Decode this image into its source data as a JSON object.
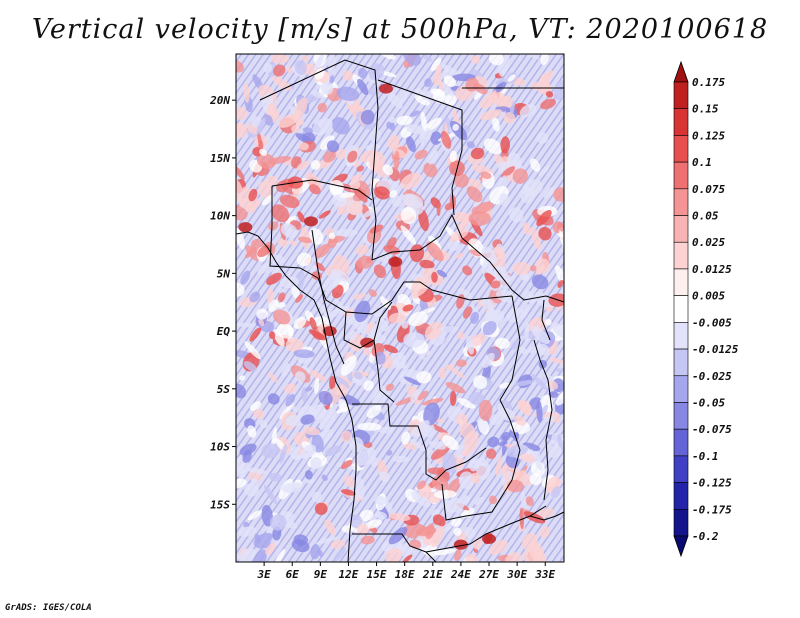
{
  "title": "Vertical velocity [m/s] at 500hPa, VT: 2020100618",
  "credit": "GrADS: IGES/COLA",
  "map": {
    "lat_range": [
      -20,
      24
    ],
    "lon_range": [
      0,
      35
    ],
    "lat_ticks": [
      {
        "value": 20,
        "label": "20N"
      },
      {
        "value": 15,
        "label": "15N"
      },
      {
        "value": 10,
        "label": "10N"
      },
      {
        "value": 5,
        "label": "5N"
      },
      {
        "value": 0,
        "label": "EQ"
      },
      {
        "value": -5,
        "label": "5S"
      },
      {
        "value": -10,
        "label": "10S"
      },
      {
        "value": -15,
        "label": "15S"
      }
    ],
    "lon_ticks": [
      {
        "value": 3,
        "label": "3E"
      },
      {
        "value": 6,
        "label": "6E"
      },
      {
        "value": 9,
        "label": "9E"
      },
      {
        "value": 12,
        "label": "12E"
      },
      {
        "value": 15,
        "label": "15E"
      },
      {
        "value": 18,
        "label": "18E"
      },
      {
        "value": 21,
        "label": "21E"
      },
      {
        "value": 24,
        "label": "24E"
      },
      {
        "value": 27,
        "label": "27E"
      },
      {
        "value": 30,
        "label": "30E"
      },
      {
        "value": 33,
        "label": "33E"
      }
    ]
  },
  "colorbar": {
    "labels": [
      "0.175",
      "0.15",
      "0.125",
      "0.1",
      "0.075",
      "0.05",
      "0.025",
      "0.0125",
      "0.005",
      "-0.005",
      "-0.0125",
      "-0.025",
      "-0.05",
      "-0.075",
      "-0.1",
      "-0.125",
      "-0.175",
      "-0.2"
    ],
    "colors": [
      "#a01010",
      "#bf2020",
      "#d83434",
      "#e85050",
      "#ee7070",
      "#f49494",
      "#f8b4b4",
      "#fcd2d2",
      "#fff0f0",
      "#ffffff",
      "#e2e2fa",
      "#c6c6f4",
      "#a6a6ee",
      "#8888e4",
      "#6464d6",
      "#4040c4",
      "#2424aa",
      "#14148c",
      "#0a0a72"
    ]
  },
  "chart_data": {
    "type": "heatmap",
    "title": "Vertical velocity [m/s] at 500hPa, VT: 2020100618",
    "variable": "vertical velocity",
    "units": "m/s",
    "level": "500hPa",
    "valid_time": "2020100618",
    "xlabel": "",
    "ylabel": "",
    "x_ticks": [
      "3E",
      "6E",
      "9E",
      "12E",
      "15E",
      "18E",
      "21E",
      "24E",
      "27E",
      "30E",
      "33E"
    ],
    "y_ticks": [
      "20N",
      "15N",
      "10N",
      "5N",
      "EQ",
      "5S",
      "10S",
      "15S"
    ],
    "color_levels": [
      -0.2,
      -0.175,
      -0.125,
      -0.1,
      -0.075,
      -0.05,
      -0.025,
      -0.0125,
      -0.005,
      0.005,
      0.0125,
      0.025,
      0.05,
      0.075,
      0.1,
      0.125,
      0.15,
      0.175
    ]
  }
}
